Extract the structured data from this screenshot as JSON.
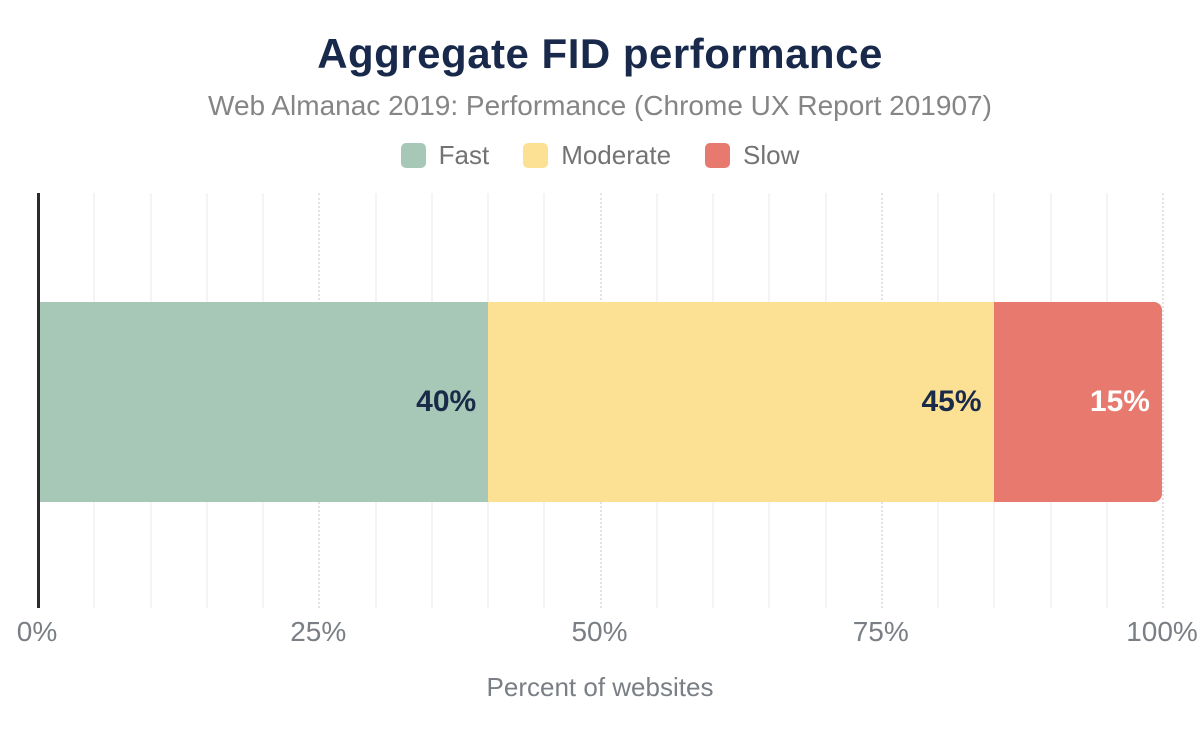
{
  "chart_data": {
    "type": "bar",
    "stacked": true,
    "orientation": "horizontal",
    "title": "Aggregate FID performance",
    "subtitle": "Web Almanac 2019: Performance (Chrome UX Report 201907)",
    "xlabel": "Percent of websites",
    "xlim": [
      0,
      100
    ],
    "x_ticks": [
      {
        "value": 0,
        "label": "0%"
      },
      {
        "value": 25,
        "label": "25%"
      },
      {
        "value": 50,
        "label": "50%"
      },
      {
        "value": 75,
        "label": "75%"
      },
      {
        "value": 100,
        "label": "100%"
      }
    ],
    "minor_gridline_step": 5,
    "major_gridline_step": 25,
    "grid": true,
    "legend_position": "top",
    "series": [
      {
        "name": "Fast",
        "value": 40,
        "data_label": "40%",
        "color": "#a7c8b6",
        "label_color": "#1a2b49"
      },
      {
        "name": "Moderate",
        "value": 45,
        "data_label": "45%",
        "color": "#fce094",
        "label_color": "#1a2b49"
      },
      {
        "name": "Slow",
        "value": 15,
        "data_label": "15%",
        "color": "#e7796f",
        "label_color": "#ffffff"
      }
    ],
    "colors": {
      "title": "#18294b",
      "subtitle": "#858585",
      "legend_text": "#737373",
      "axis_text": "#7a7f85",
      "axis_line": "#2b2b2b",
      "minor_gridline": "#f4f4f4",
      "major_gridline": "#e2e2e2",
      "background": "#ffffff"
    }
  }
}
